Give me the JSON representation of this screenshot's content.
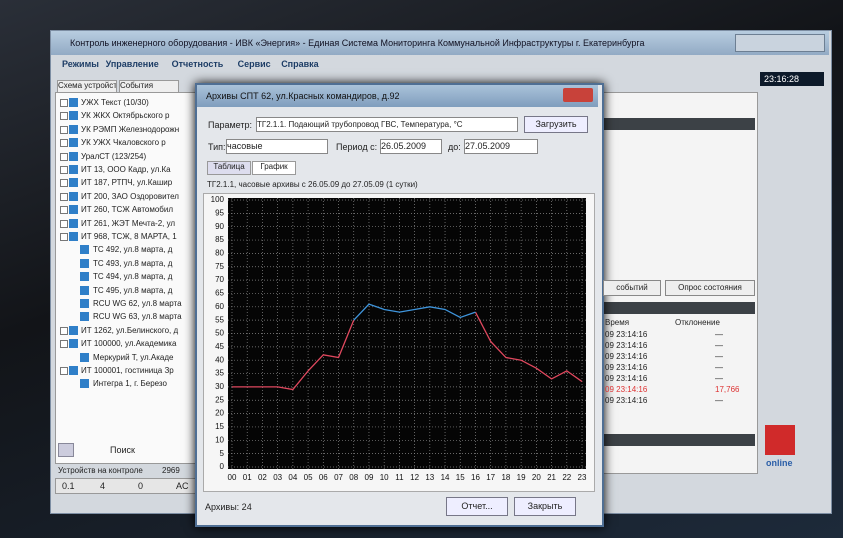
{
  "window": {
    "title": "Контроль инженерного оборудования - ИВК «Энергия» - Единая Система Мониторинга Коммунальной Инфраструктуры г. Екатеринбурга",
    "menu": [
      "Режимы",
      "Управление",
      "Отчетность",
      "Сервис",
      "Справка"
    ],
    "clock": "23:16:28",
    "tabs": [
      "Схема устройств",
      "События"
    ],
    "tree": [
      {
        "label": "УЖХ Текст (10/30)"
      },
      {
        "label": "УК ЖКХ Октябрьского р"
      },
      {
        "label": "УК РЭМП Железнодорожн"
      },
      {
        "label": "УК УЖХ Чкаловского р"
      },
      {
        "label": "УралСТ (123/254)"
      },
      {
        "label": "ИТ 13, ООО Кадр, ул.Ка"
      },
      {
        "label": "ИТ 187, РТПЧ, ул.Кашир"
      },
      {
        "label": "ИТ 200, ЗАО Оздоровител"
      },
      {
        "label": "ИТ 260, ТСЖ Автомобил"
      },
      {
        "label": "ИТ 261, ЖЭТ Мечта-2, ул"
      },
      {
        "label": "ИТ 968, ТСЖ, 8 МАРТА, 1",
        "children": [
          {
            "label": "ТС 492, ул.8 марта, д"
          },
          {
            "label": "ТС 493, ул.8 марта, д"
          },
          {
            "label": "ТС 494, ул.8 марта, д"
          },
          {
            "label": "ТС 495, ул.8 марта, д"
          },
          {
            "label": "RCU WG 62, ул.8 марта"
          },
          {
            "label": "RCU WG 63, ул.8 марта"
          }
        ]
      },
      {
        "label": "ИТ 1262, ул.Белинского, д"
      },
      {
        "label": "ИТ 100000, ул.Академика",
        "children": [
          {
            "label": "Меркурий Т, ул.Акаде"
          }
        ]
      },
      {
        "label": "ИТ 100001, гостиница Зр",
        "children": [
          {
            "label": "Интегра 1, г. Березо"
          }
        ]
      }
    ],
    "search": "Поиск",
    "status_label": "Устройств на контроле",
    "status_value": "2969",
    "statusbar": [
      "0.1",
      "4",
      "0",
      "AC"
    ]
  },
  "events_panel": {
    "buttons": [
      "событий",
      "Опрос состояния"
    ],
    "columns": [
      "Время",
      "Отклонение"
    ],
    "rows": [
      [
        "09 23:14:16",
        "—"
      ],
      [
        "09 23:14:16",
        "—"
      ],
      [
        "09 23:14:16",
        "—"
      ],
      [
        "09 23:14:16",
        "—"
      ],
      [
        "09 23:14:16",
        "—"
      ],
      [
        "09 23:14:16",
        "17,766"
      ],
      [
        "09 23:14:16",
        "—"
      ]
    ],
    "logo_text": "online"
  },
  "dialog": {
    "title": "Архивы СПТ 62, ул.Красных командиров, д.92",
    "param_label": "Параметр:",
    "param_value": "ТГ2.1.1. Подающий трубопровод ГВС, Температура, °С",
    "load_button": "Загрузить",
    "type_label": "Тип:",
    "type_value": "часовые",
    "period_from_label": "Период с:",
    "period_from": "26.05.2009",
    "period_to_label": "до:",
    "period_to": "27.05.2009",
    "tabs": [
      "Таблица",
      "График"
    ],
    "footer": "Архивы: 24",
    "buttons": [
      "Отчет...",
      "Закрыть"
    ]
  },
  "chart_data": {
    "type": "line",
    "title": "ТГ2.1.1, часовые архивы с 26.05.09 до 27.05.09 (1 сутки)",
    "categories": [
      "00",
      "01",
      "02",
      "03",
      "04",
      "05",
      "06",
      "07",
      "08",
      "09",
      "10",
      "11",
      "12",
      "13",
      "14",
      "15",
      "16",
      "17",
      "18",
      "19",
      "20",
      "21",
      "22",
      "23"
    ],
    "series": [
      {
        "color": "#e0485e",
        "values": [
          30,
          30,
          30,
          30,
          29,
          36,
          42,
          41,
          55,
          null,
          null,
          null,
          null,
          null,
          null,
          null,
          58,
          47,
          41,
          40,
          37,
          33,
          36,
          32
        ]
      },
      {
        "color": "#3f95dc",
        "values": [
          null,
          null,
          null,
          null,
          null,
          null,
          null,
          null,
          55,
          61,
          59,
          58,
          59,
          60,
          59,
          56,
          58,
          null,
          null,
          null,
          null,
          null,
          null,
          null
        ]
      }
    ],
    "ylim": [
      0,
      100
    ],
    "yticks": [
      0,
      5,
      10,
      15,
      20,
      25,
      30,
      35,
      40,
      45,
      50,
      55,
      60,
      65,
      70,
      75,
      80,
      85,
      90,
      95,
      100
    ],
    "grid": true
  }
}
